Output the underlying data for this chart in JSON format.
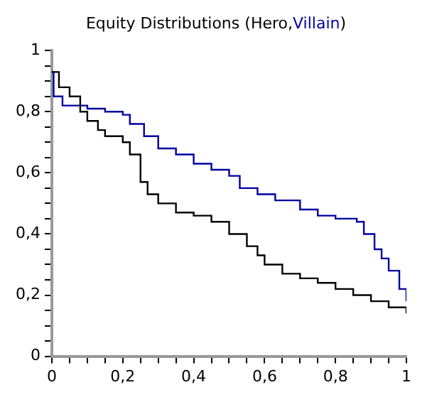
{
  "chart_data": {
    "type": "step",
    "title": "Equity Distributions",
    "annotations": [
      "(",
      ",",
      ")"
    ],
    "legend": "top",
    "marker": "none",
    "grid": false,
    "xlim": [
      0,
      1
    ],
    "ylim": [
      0,
      1
    ],
    "xticks": [
      0,
      {
        "value": 0.05,
        "label": null
      },
      {
        "value": 0.1,
        "label": null
      },
      {
        "value": 0.15,
        "label": null
      },
      {
        "value": 0.2,
        "label": "0,2"
      },
      {
        "value": 0.25,
        "label": null
      },
      {
        "value": 0.3,
        "label": null
      },
      {
        "value": 0.35,
        "label": null
      },
      {
        "value": 0.4,
        "label": "0,4"
      },
      {
        "value": 0.45,
        "label": null
      },
      {
        "value": 0.5,
        "label": null
      },
      {
        "value": 0.55,
        "label": null
      },
      {
        "value": 0.6,
        "label": "0,6"
      },
      {
        "value": 0.65,
        "label": null
      },
      {
        "value": 0.7,
        "label": null
      },
      {
        "value": 0.75,
        "label": null
      },
      {
        "value": 0.8,
        "label": "0,8"
      },
      {
        "value": 0.85,
        "label": null
      },
      {
        "value": 0.9,
        "label": null
      },
      {
        "value": 0.95,
        "label": null
      },
      1
    ],
    "yticks": [
      0,
      {
        "value": 0.05,
        "label": null
      },
      {
        "value": 0.1,
        "label": null
      },
      {
        "value": 0.15,
        "label": null
      },
      {
        "value": 0.2,
        "label": "0,2"
      },
      {
        "value": 0.25,
        "label": null
      },
      {
        "value": 0.3,
        "label": null
      },
      {
        "value": 0.35,
        "label": null
      },
      {
        "value": 0.4,
        "label": "0,4"
      },
      {
        "value": 0.45,
        "label": null
      },
      {
        "value": 0.5,
        "label": null
      },
      {
        "value": 0.55,
        "label": null
      },
      {
        "value": 0.6,
        "label": "0,6"
      },
      {
        "value": 0.65,
        "label": null
      },
      {
        "value": 0.7,
        "label": null
      },
      {
        "value": 0.75,
        "label": null
      },
      {
        "value": 0.8,
        "label": "0,8"
      },
      {
        "value": 0.85,
        "label": null
      },
      {
        "value": 0.9,
        "label": null
      },
      {
        "value": 0.95,
        "label": null
      },
      1
    ],
    "series": [
      {
        "name": "Hero",
        "color": "#000000",
        "x": [
          0,
          0.02,
          0.05,
          0.08,
          0.1,
          0.13,
          0.15,
          0.2,
          0.22,
          0.25,
          0.27,
          0.3,
          0.35,
          0.4,
          0.45,
          0.5,
          0.55,
          0.58,
          0.6,
          0.65,
          0.7,
          0.75,
          0.8,
          0.85,
          0.9,
          0.95,
          1
        ],
        "values": [
          0.93,
          0.88,
          0.85,
          0.8,
          0.77,
          0.74,
          0.72,
          0.7,
          0.66,
          0.57,
          0.53,
          0.5,
          0.47,
          0.46,
          0.44,
          0.4,
          0.36,
          0.33,
          0.3,
          0.27,
          0.255,
          0.24,
          0.22,
          0.2,
          0.18,
          0.16,
          0.14
        ]
      },
      {
        "name": "Villain",
        "color": "#0000a0",
        "x": [
          0,
          0.005,
          0.03,
          0.1,
          0.15,
          0.2,
          0.22,
          0.26,
          0.3,
          0.35,
          0.4,
          0.45,
          0.5,
          0.53,
          0.58,
          0.63,
          0.7,
          0.75,
          0.8,
          0.86,
          0.88,
          0.91,
          0.93,
          0.95,
          0.98,
          1
        ],
        "values": [
          0.93,
          0.85,
          0.82,
          0.81,
          0.8,
          0.79,
          0.76,
          0.72,
          0.68,
          0.66,
          0.63,
          0.61,
          0.59,
          0.55,
          0.53,
          0.51,
          0.48,
          0.46,
          0.45,
          0.44,
          0.4,
          0.35,
          0.32,
          0.28,
          0.22,
          0.18
        ]
      }
    ]
  }
}
